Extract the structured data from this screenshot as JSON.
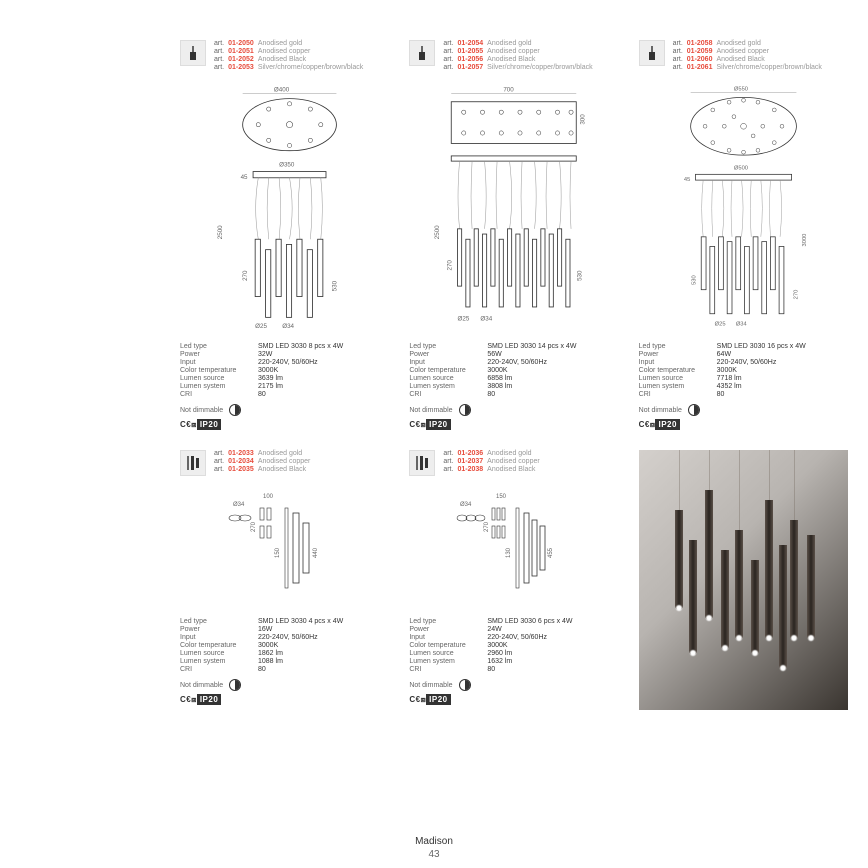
{
  "collection": "Madison",
  "page_number": "43",
  "cert_text_ce": "C€",
  "cert_text_eac": "⧈",
  "cert_text_ip": "IP20",
  "products": [
    {
      "articles": [
        {
          "code": "01-2050",
          "finish": "Anodised gold"
        },
        {
          "code": "01-2051",
          "finish": "Anodised copper"
        },
        {
          "code": "01-2052",
          "finish": "Anodised Black"
        },
        {
          "code": "01-2053",
          "finish": "Silver/chrome/copper/brown/black"
        }
      ],
      "dims": {
        "canopy_d": "Ø400",
        "base_d": "Ø350",
        "max_h": "2500",
        "tube_l": "530",
        "tube_s": "270",
        "d_small": "Ø25",
        "d_big": "Ø34",
        "h_base": "45"
      },
      "specs": {
        "led_type": "SMD LED 3030 8 pcs x 4W",
        "power": "32W",
        "input": "220-240V, 50/60Hz",
        "color_temp": "3000K",
        "lumen_source": "3639 lm",
        "lumen_system": "2175 lm",
        "cri": "80",
        "dimmable": "Not dimmable"
      }
    },
    {
      "articles": [
        {
          "code": "01-2054",
          "finish": "Anodised gold"
        },
        {
          "code": "01-2055",
          "finish": "Anodised copper"
        },
        {
          "code": "01-2056",
          "finish": "Anodised Black"
        },
        {
          "code": "01-2057",
          "finish": "Silver/chrome/copper/brown/black"
        }
      ],
      "dims": {
        "canopy_w": "700",
        "canopy_h": "300",
        "max_h": "2500",
        "tube_l": "530",
        "tube_s": "270",
        "d_small": "Ø25",
        "d_big": "Ø34"
      },
      "specs": {
        "led_type": "SMD LED 3030 14 pcs x 4W",
        "power": "56W",
        "input": "220-240V, 50/60Hz",
        "color_temp": "3000K",
        "lumen_source": "6858 lm",
        "lumen_system": "3808 lm",
        "cri": "80",
        "dimmable": "Not dimmable"
      }
    },
    {
      "articles": [
        {
          "code": "01-2058",
          "finish": "Anodised gold"
        },
        {
          "code": "01-2059",
          "finish": "Anodised copper"
        },
        {
          "code": "01-2060",
          "finish": "Anodised Black"
        },
        {
          "code": "01-2061",
          "finish": "Silver/chrome/copper/brown/black"
        }
      ],
      "dims": {
        "canopy_d": "Ø550",
        "base_d": "Ø500",
        "max_h": "3000",
        "tube_l": "530",
        "tube_s": "270",
        "d_small": "Ø25",
        "d_big": "Ø34",
        "h_base": "45"
      },
      "specs": {
        "led_type": "SMD LED 3030 16 pcs x 4W",
        "power": "64W",
        "input": "220-240V, 50/60Hz",
        "color_temp": "3000K",
        "lumen_source": "7718 lm",
        "lumen_system": "4352 lm",
        "cri": "80",
        "dimmable": "Not dimmable"
      }
    },
    {
      "articles": [
        {
          "code": "01-2033",
          "finish": "Anodised gold"
        },
        {
          "code": "01-2034",
          "finish": "Anodised copper"
        },
        {
          "code": "01-2035",
          "finish": "Anodised Black"
        }
      ],
      "dims": {
        "w": "100",
        "h": "440",
        "tube_d": "Ø34",
        "gap": "150",
        "tube_s": "270"
      },
      "specs": {
        "led_type": "SMD LED 3030 4 pcs x 4W",
        "power": "16W",
        "input": "220-240V, 50/60Hz",
        "color_temp": "3000K",
        "lumen_source": "1862 lm",
        "lumen_system": "1088 lm",
        "cri": "80",
        "dimmable": "Not dimmable"
      }
    },
    {
      "articles": [
        {
          "code": "01-2036",
          "finish": "Anodised gold"
        },
        {
          "code": "01-2037",
          "finish": "Anodised copper"
        },
        {
          "code": "01-2038",
          "finish": "Anodised Black"
        }
      ],
      "dims": {
        "w": "150",
        "h": "455",
        "tube_d": "Ø34",
        "gap": "130",
        "tube_s": "270"
      },
      "specs": {
        "led_type": "SMD LED 3030 6 pcs x 4W",
        "power": "24W",
        "input": "220-240V, 50/60Hz",
        "color_temp": "3000K",
        "lumen_source": "2960 lm",
        "lumen_system": "1632 lm",
        "cri": "80",
        "dimmable": "Not dimmable"
      }
    }
  ],
  "spec_labels": {
    "led_type": "Led type",
    "power": "Power",
    "input": "Input",
    "color_temp": "Color temperature",
    "lumen_source": "Lumen source",
    "lumen_system": "Lumen system",
    "cri": "CRI",
    "dimmable": "Not dimmable",
    "art": "art."
  }
}
